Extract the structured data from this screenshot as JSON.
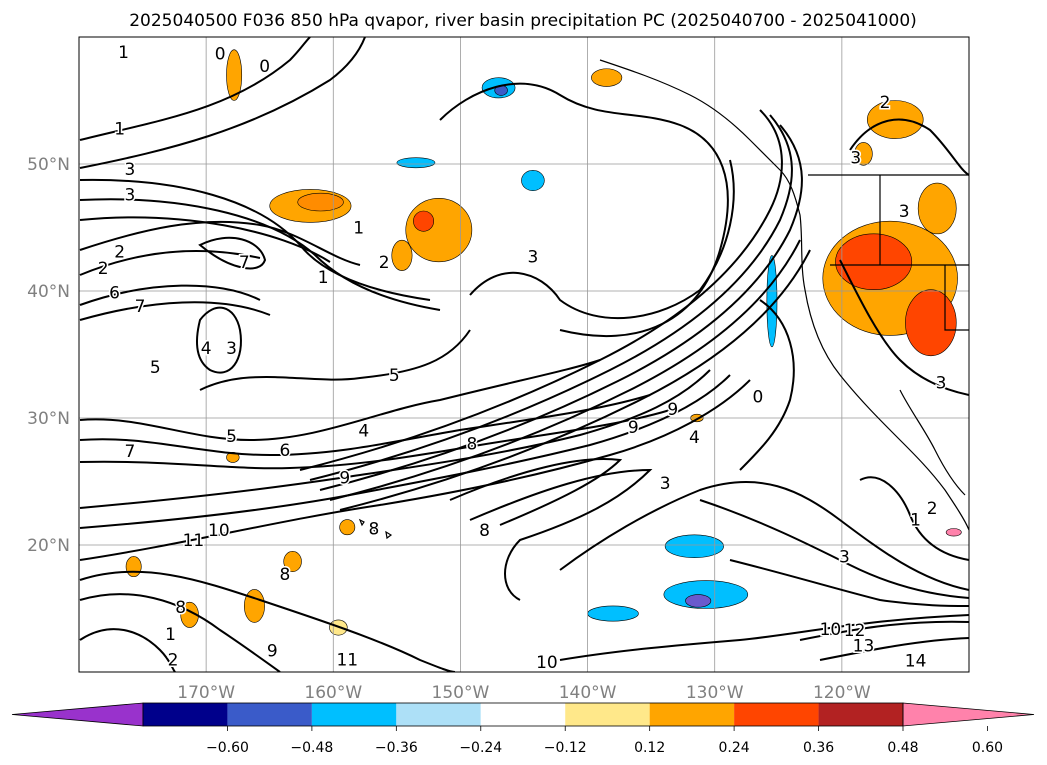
{
  "title": "2025040500 F036 850 hPa qvapor, river basin precipitation PC (2025040700 - 2025041000)",
  "map": {
    "lon_range": [
      -180,
      -110
    ],
    "lat_range": [
      10,
      60
    ],
    "lon_ticks": [
      {
        "value": -170,
        "label": "170°W"
      },
      {
        "value": -160,
        "label": "160°W"
      },
      {
        "value": -150,
        "label": "150°W"
      },
      {
        "value": -140,
        "label": "140°W"
      },
      {
        "value": -130,
        "label": "130°W"
      },
      {
        "value": -120,
        "label": "120°W"
      }
    ],
    "lat_ticks": [
      {
        "value": 20,
        "label": "20°N"
      },
      {
        "value": 30,
        "label": "30°N"
      },
      {
        "value": 40,
        "label": "40°N"
      },
      {
        "value": 50,
        "label": "50°N"
      }
    ],
    "grid": true,
    "contour_labels": [
      {
        "text": "1",
        "lon": -176.5,
        "lat": 58.8
      },
      {
        "text": "0",
        "lon": -168.9,
        "lat": 58.7
      },
      {
        "text": "0",
        "lon": -165.4,
        "lat": 57.7
      },
      {
        "text": "1",
        "lon": -176.8,
        "lat": 52.8
      },
      {
        "text": "3",
        "lon": -176.0,
        "lat": 49.6
      },
      {
        "text": "3",
        "lon": -176.0,
        "lat": 47.6
      },
      {
        "text": "2",
        "lon": -176.8,
        "lat": 43.1
      },
      {
        "text": "2",
        "lon": -178.1,
        "lat": 41.8
      },
      {
        "text": "6",
        "lon": -177.2,
        "lat": 39.9
      },
      {
        "text": "7",
        "lon": -175.2,
        "lat": 38.8
      },
      {
        "text": "7",
        "lon": -167.0,
        "lat": 42.3
      },
      {
        "text": "1",
        "lon": -158.0,
        "lat": 45.0
      },
      {
        "text": "2",
        "lon": -156.0,
        "lat": 42.3
      },
      {
        "text": "1",
        "lon": -160.8,
        "lat": 41.1
      },
      {
        "text": "4",
        "lon": -170.0,
        "lat": 35.5
      },
      {
        "text": "3",
        "lon": -168.0,
        "lat": 35.5
      },
      {
        "text": "5",
        "lon": -174.0,
        "lat": 34.0
      },
      {
        "text": "5",
        "lon": -155.2,
        "lat": 33.4
      },
      {
        "text": "3",
        "lon": -144.3,
        "lat": 42.7
      },
      {
        "text": "9",
        "lon": -133.3,
        "lat": 30.7
      },
      {
        "text": "9",
        "lon": -136.4,
        "lat": 29.3
      },
      {
        "text": "4",
        "lon": -131.6,
        "lat": 28.5
      },
      {
        "text": "0",
        "lon": -126.6,
        "lat": 31.7
      },
      {
        "text": "4",
        "lon": -157.6,
        "lat": 29.0
      },
      {
        "text": "5",
        "lon": -168.0,
        "lat": 28.6
      },
      {
        "text": "6",
        "lon": -163.8,
        "lat": 27.5
      },
      {
        "text": "7",
        "lon": -176.0,
        "lat": 27.4
      },
      {
        "text": "8",
        "lon": -149.1,
        "lat": 28.0
      },
      {
        "text": "9",
        "lon": -159.1,
        "lat": 25.3
      },
      {
        "text": "3",
        "lon": -133.9,
        "lat": 24.9
      },
      {
        "text": "8",
        "lon": -148.1,
        "lat": 21.2
      },
      {
        "text": "8",
        "lon": -156.8,
        "lat": 21.3
      },
      {
        "text": "10",
        "lon": -169.0,
        "lat": 21.2
      },
      {
        "text": "11",
        "lon": -171.0,
        "lat": 20.4
      },
      {
        "text": "8",
        "lon": -163.8,
        "lat": 17.7
      },
      {
        "text": "8",
        "lon": -172.0,
        "lat": 15.1
      },
      {
        "text": "1",
        "lon": -172.8,
        "lat": 13.0
      },
      {
        "text": "2",
        "lon": -172.6,
        "lat": 11.0
      },
      {
        "text": "9",
        "lon": -164.8,
        "lat": 11.7
      },
      {
        "text": "11",
        "lon": -158.9,
        "lat": 11.0
      },
      {
        "text": "10",
        "lon": -143.2,
        "lat": 10.8
      },
      {
        "text": "1",
        "lon": -114.2,
        "lat": 22.0
      },
      {
        "text": "2",
        "lon": -112.9,
        "lat": 22.9
      },
      {
        "text": "3",
        "lon": -119.8,
        "lat": 19.1
      },
      {
        "text": "10",
        "lon": -120.9,
        "lat": 13.4
      },
      {
        "text": "12",
        "lon": -119.0,
        "lat": 13.3
      },
      {
        "text": "13",
        "lon": -118.3,
        "lat": 12.1
      },
      {
        "text": "14",
        "lon": -114.2,
        "lat": 10.9
      },
      {
        "text": "2",
        "lon": -116.6,
        "lat": 54.9
      },
      {
        "text": "3",
        "lon": -118.9,
        "lat": 50.5
      },
      {
        "text": "3",
        "lon": -115.1,
        "lat": 46.3
      },
      {
        "text": "3",
        "lon": -112.2,
        "lat": 32.8
      }
    ]
  },
  "colorbar": {
    "tick_labels": [
      "−0.60",
      "−0.48",
      "−0.36",
      "−0.24",
      "−0.12",
      "0.12",
      "0.24",
      "0.36",
      "0.48",
      "0.60"
    ],
    "colors": [
      "#9932CC",
      "#00008B",
      "#3A5BC9",
      "#00BFFF",
      "#ADE0F7",
      "#FFFFFF",
      "#FFE88A",
      "#FFA500",
      "#FF4500",
      "#B22222",
      "#FF82AB"
    ],
    "extend": "both"
  },
  "precip_blobs": [
    {
      "lon": -161.8,
      "lat": 46.7,
      "rlon": 3.2,
      "rlat": 1.3,
      "color": "#FFA500"
    },
    {
      "lon": -161.0,
      "lat": 47.0,
      "rlon": 1.8,
      "rlat": 0.7,
      "color": "#FF8C00"
    },
    {
      "lon": -151.7,
      "lat": 44.8,
      "rlon": 2.6,
      "rlat": 2.5,
      "color": "#FFA500"
    },
    {
      "lon": -152.9,
      "lat": 45.5,
      "rlon": 0.8,
      "rlat": 0.8,
      "color": "#FF4500"
    },
    {
      "lon": -154.6,
      "lat": 42.8,
      "rlon": 0.8,
      "rlat": 1.2,
      "color": "#FFA500"
    },
    {
      "lon": -167.8,
      "lat": 57.0,
      "rlon": 0.6,
      "rlat": 2.0,
      "color": "#FFA500"
    },
    {
      "lon": -138.5,
      "lat": 56.8,
      "rlon": 1.2,
      "rlat": 0.7,
      "color": "#FFA500"
    },
    {
      "lon": -147.0,
      "lat": 56.0,
      "rlon": 1.3,
      "rlat": 0.8,
      "color": "#00BFFF"
    },
    {
      "lon": -146.8,
      "lat": 55.8,
      "rlon": 0.5,
      "rlat": 0.4,
      "color": "#3A5BC9"
    },
    {
      "lon": -153.5,
      "lat": 50.1,
      "rlon": 1.5,
      "rlat": 0.4,
      "color": "#00BFFF"
    },
    {
      "lon": -144.3,
      "lat": 48.7,
      "rlon": 0.9,
      "rlat": 0.8,
      "color": "#00BFFF"
    },
    {
      "lon": -115.8,
      "lat": 53.5,
      "rlon": 2.2,
      "rlat": 1.5,
      "color": "#FFA500"
    },
    {
      "lon": -118.3,
      "lat": 50.8,
      "rlon": 0.7,
      "rlat": 0.9,
      "color": "#FFA500"
    },
    {
      "lon": -116.2,
      "lat": 41.0,
      "rlon": 5.3,
      "rlat": 4.5,
      "color": "#FFA500"
    },
    {
      "lon": -117.5,
      "lat": 42.3,
      "rlon": 3.0,
      "rlat": 2.2,
      "color": "#FF4500"
    },
    {
      "lon": -113.0,
      "lat": 37.5,
      "rlon": 2.0,
      "rlat": 2.6,
      "color": "#FF4500"
    },
    {
      "lon": -112.5,
      "lat": 46.5,
      "rlon": 1.5,
      "rlat": 2.0,
      "color": "#FFA500"
    },
    {
      "lon": -125.5,
      "lat": 39.2,
      "rlon": 0.4,
      "rlat": 3.6,
      "color": "#00BFFF"
    },
    {
      "lon": -131.6,
      "lat": 19.9,
      "rlon": 2.3,
      "rlat": 0.9,
      "color": "#00BFFF"
    },
    {
      "lon": -130.7,
      "lat": 16.1,
      "rlon": 3.3,
      "rlat": 1.1,
      "color": "#00BFFF"
    },
    {
      "lon": -131.3,
      "lat": 15.6,
      "rlon": 1.0,
      "rlat": 0.5,
      "color": "#6A5ACD"
    },
    {
      "lon": -138.0,
      "lat": 14.6,
      "rlon": 2.0,
      "rlat": 0.6,
      "color": "#00BFFF"
    },
    {
      "lon": -166.2,
      "lat": 15.2,
      "rlon": 0.8,
      "rlat": 1.3,
      "color": "#FFA500"
    },
    {
      "lon": -171.3,
      "lat": 14.5,
      "rlon": 0.7,
      "rlat": 1.0,
      "color": "#FFA500"
    },
    {
      "lon": -175.7,
      "lat": 18.3,
      "rlon": 0.6,
      "rlat": 0.8,
      "color": "#FFA500"
    },
    {
      "lon": -167.9,
      "lat": 26.9,
      "rlon": 0.5,
      "rlat": 0.4,
      "color": "#FFA500"
    },
    {
      "lon": -163.2,
      "lat": 18.7,
      "rlon": 0.7,
      "rlat": 0.8,
      "color": "#FFA500"
    },
    {
      "lon": -158.9,
      "lat": 21.4,
      "rlon": 0.6,
      "rlat": 0.6,
      "color": "#FFA500"
    },
    {
      "lon": -159.6,
      "lat": 13.5,
      "rlon": 0.7,
      "rlat": 0.6,
      "color": "#FFE88A"
    },
    {
      "lon": -131.4,
      "lat": 30.0,
      "rlon": 0.5,
      "rlat": 0.3,
      "color": "#FFA500"
    },
    {
      "lon": -111.2,
      "lat": 21.0,
      "rlon": 0.6,
      "rlat": 0.3,
      "color": "#FF82AB"
    }
  ]
}
